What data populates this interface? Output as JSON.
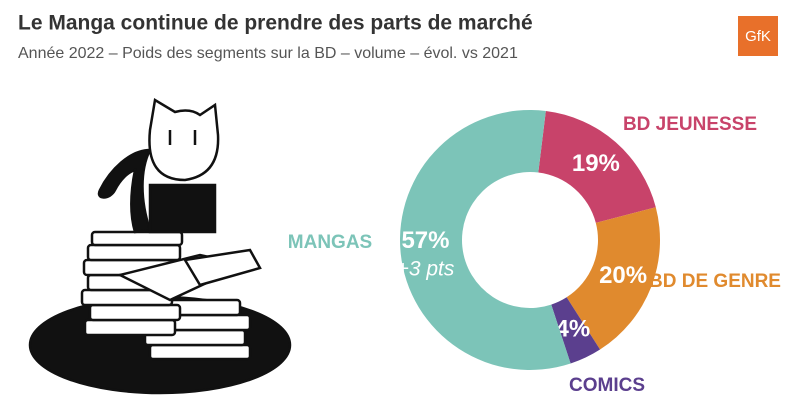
{
  "chart_data": {
    "type": "donut",
    "title": "Le Manga continue de prendre des parts de marché",
    "subtitle": "Année 2022 – Poids des segments sur la BD – volume – évol. vs 2021",
    "logo": "GfK",
    "categories": [
      "BD JEUNESSE",
      "BD DE GENRE",
      "COMICS",
      "MANGAS"
    ],
    "values": [
      19,
      20,
      4,
      57
    ],
    "value_labels": [
      "19%",
      "20%",
      "4%",
      "57%"
    ],
    "colors": [
      "#c8436a",
      "#e08a2e",
      "#5b3f8e",
      "#7cc4b8"
    ],
    "annotation": "+3 pts"
  }
}
